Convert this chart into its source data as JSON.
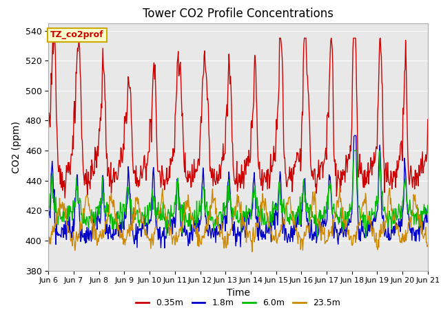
{
  "title": "Tower CO2 Profile Concentrations",
  "xlabel": "Time",
  "ylabel": "CO2 (ppm)",
  "ylim": [
    380,
    545
  ],
  "yticks": [
    380,
    400,
    420,
    440,
    460,
    480,
    500,
    520,
    540
  ],
  "x_labels": [
    "Jun 6",
    "Jun 7",
    "Jun 8",
    "Jun 9",
    "Jun 10",
    "Jun 11",
    "Jun 12",
    "Jun 13",
    "Jun 14",
    "Jun 15",
    "Jun 16",
    "Jun 17",
    "Jun 18",
    "Jun 19",
    "Jun 20",
    "Jun 21"
  ],
  "colors": {
    "0.35m": "#cc0000",
    "1.8m": "#0000cc",
    "6.0m": "#00bb00",
    "23.5m": "#cc8800"
  },
  "legend_label": "TZ_co2prof",
  "legend_facecolor": "#ffffcc",
  "legend_edgecolor": "#ccaa00",
  "legend_textcolor": "#cc0000",
  "bg_color": "#e8e8e8",
  "linewidth": 1.0,
  "n_points": 720
}
